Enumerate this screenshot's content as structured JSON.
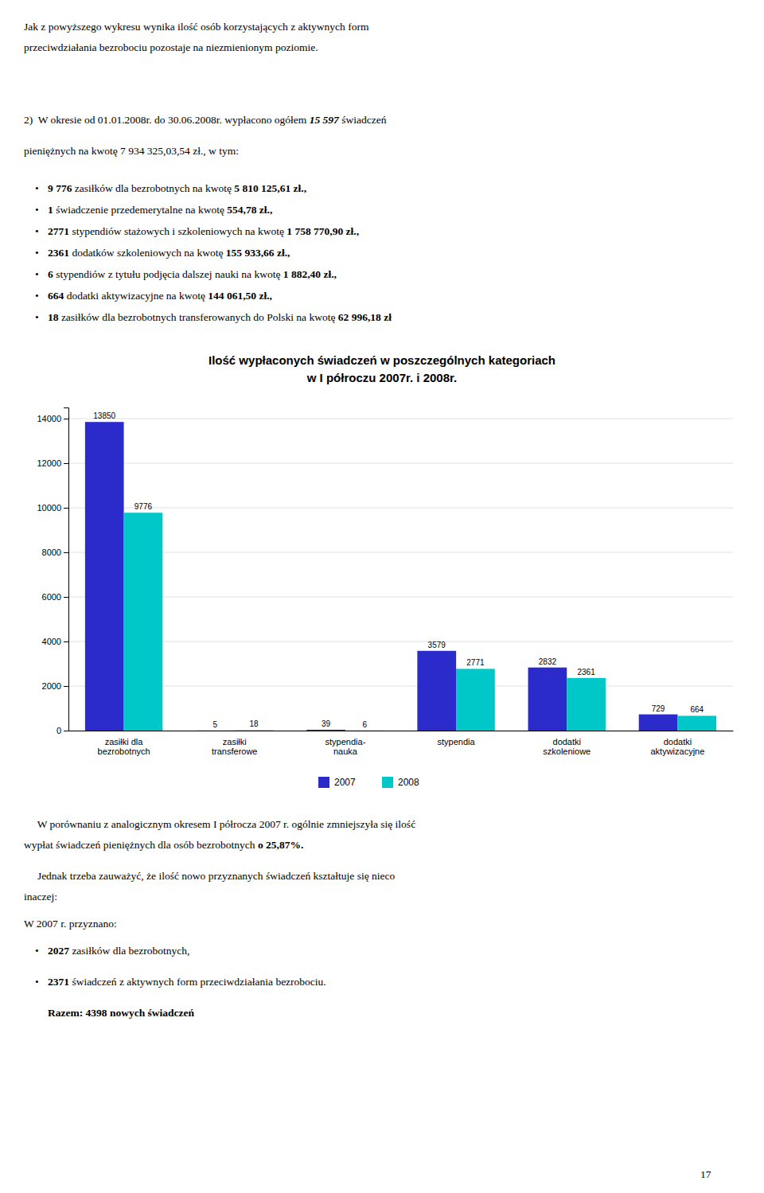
{
  "chart_data": {
    "type": "bar",
    "title": "Ilość wypłaconych świadczeń w poszczególnych kategoriach",
    "subtitle": "w I półroczu 2007r. i 2008r.",
    "categories": [
      "zasiłki dla\nbezrobotnych",
      "zasiłki\ntransferowe",
      "stypendia-\nnauka",
      "stypendia",
      "dodatki\nszkoleniowe",
      "dodatki\naktywizacyjne"
    ],
    "series": [
      {
        "name": "2007",
        "color": "#2B2BCC",
        "values": [
          13850,
          5,
          39,
          3579,
          2832,
          729
        ]
      },
      {
        "name": "2008",
        "color": "#00C8C8",
        "values": [
          9776,
          18,
          6,
          2771,
          2361,
          664
        ]
      }
    ],
    "ylim": [
      0,
      14500
    ],
    "yticks": [
      0,
      2000,
      4000,
      6000,
      8000,
      10000,
      12000,
      14000
    ],
    "grid": true,
    "legend": "bottom",
    "data_labels": true
  },
  "page": {
    "bullet": "•",
    "intro": [
      [
        "Jak z powyższego wykresu wynika ilość osób korzystających z aktywnych form"
      ],
      [
        "przeciwdziałania bezrobociu pozostaje na niezmienionym poziomie."
      ]
    ],
    "summary": [
      [
        "2)  W okresie od 01.01.2008r. do 30.06.2008r. wypłacono ogółem ",
        {
          "bold_italic": "15 597"
        },
        " świadczeń"
      ],
      [
        "pieniężnych na kwotę 7 934 325,03,54 zł., w tym:"
      ]
    ],
    "items": [
      [
        {
          "bold": "9 776"
        },
        " zasiłków dla bezrobotnych na kwotę ",
        {
          "bold": "5 810 125,61 zł.,"
        }
      ],
      [
        {
          "bold": "1"
        },
        " świadczenie przedemerytalne na kwotę ",
        {
          "bold": "554,78 zł.,"
        }
      ],
      [
        {
          "bold": "2771"
        },
        " stypendiów stażowych i szkoleniowych na kwotę ",
        {
          "bold": "1 758 770,90 zł.,"
        }
      ],
      [
        {
          "bold": "2361"
        },
        " dodatków szkoleniowych na kwotę ",
        {
          "bold": "155 933,66 zł.,"
        }
      ],
      [
        {
          "bold": "6"
        },
        " stypendiów z tytułu podjęcia dalszej nauki na kwotę ",
        {
          "bold": "1 882,40 zł.,"
        }
      ],
      [
        {
          "bold": "664"
        },
        " dodatki aktywizacyjne na kwotę ",
        {
          "bold": "144 061,50 zł.,"
        }
      ],
      [
        {
          "bold": "18"
        },
        " zasiłków dla bezrobotnych transferowanych do Polski na kwotę ",
        {
          "bold": "62 996,18 zł"
        }
      ]
    ],
    "comparison": [
      [
        "     W porównaniu z analogicznym okresem I półrocza 2007 r. ogólnie zmniejszyła się ilość"
      ],
      [
        "wypłat świadczeń pieniężnych dla osób bezrobotnych ",
        {
          "bold": "o 25,87%."
        }
      ]
    ],
    "note": [
      [
        "     Jednak trzeba zauważyć, że ilość nowo przyznanych świadczeń kształtuje się nieco"
      ],
      [
        "inaczej:"
      ],
      [
        "W 2007 r. przyznano:"
      ]
    ],
    "new_items": [
      [
        {
          "bold": "2027"
        },
        " zasiłków dla bezrobotnych,"
      ],
      [
        {
          "bold": "2371"
        },
        " świadczeń z aktywnych form przeciwdziałania bezrobociu."
      ]
    ],
    "total": [
      [
        {
          "bold": "Razem: 4398 nowych świadczeń"
        }
      ]
    ],
    "page_number": "17"
  }
}
